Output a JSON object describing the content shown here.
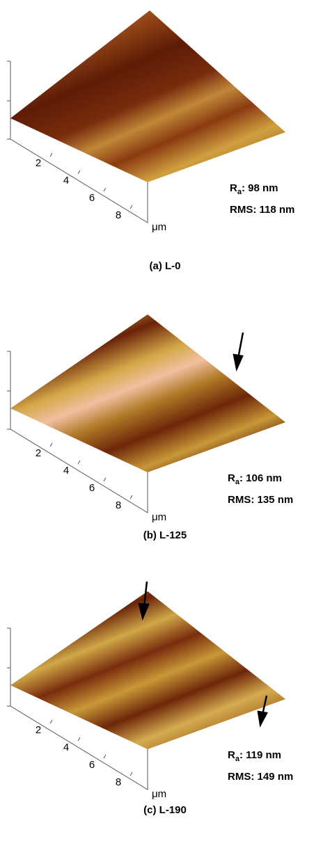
{
  "panels": [
    {
      "caption": "(a) L-0",
      "ticks": [
        "2",
        "4",
        "6",
        "8"
      ],
      "unit": "μm",
      "ra": {
        "symbol": "R",
        "subscript": "a",
        "text": ": 98 nm"
      },
      "rms": "RMS: 118 nm"
    },
    {
      "caption": "(b) L-125",
      "ticks": [
        "2",
        "4",
        "6",
        "8"
      ],
      "unit": "μm",
      "ra": {
        "symbol": "R",
        "subscript": "a",
        "text": ": 106 nm"
      },
      "rms": "RMS: 135 nm"
    },
    {
      "caption": "(c) L-190",
      "ticks": [
        "2",
        "4",
        "6",
        "8"
      ],
      "unit": "μm",
      "ra": {
        "symbol": "R",
        "subscript": "a",
        "text": ": 119 nm"
      },
      "rms": "RMS: 149 nm"
    }
  ]
}
